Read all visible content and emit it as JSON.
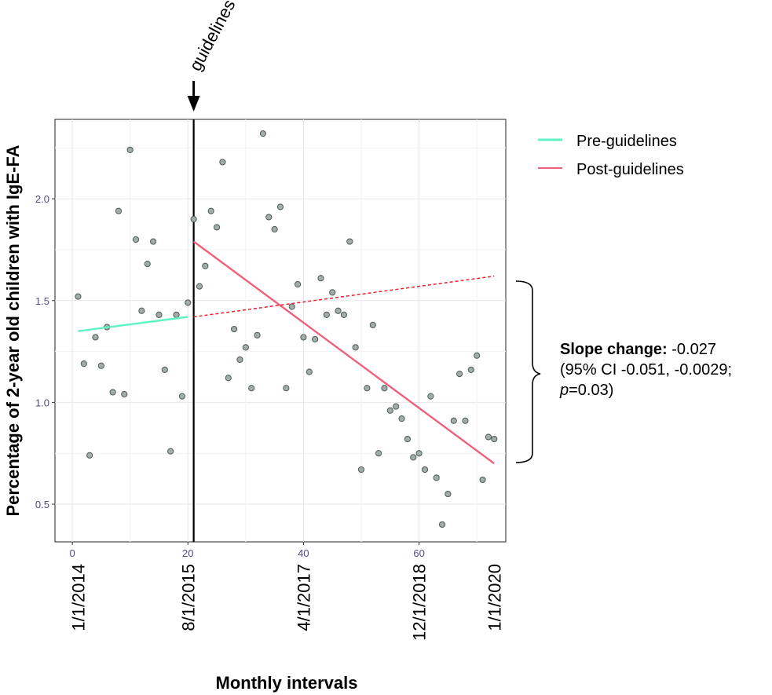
{
  "chart_data": {
    "type": "scatter",
    "title": "",
    "xlabel": "Monthly intervals",
    "ylabel": "Percentage of 2-year old children with IgE-FA",
    "xlim": [
      -3,
      75
    ],
    "ylim": [
      0.315,
      2.39
    ],
    "x_ticks": [
      0,
      20,
      40,
      60
    ],
    "y_ticks": [
      0.5,
      1.0,
      1.5,
      2.0
    ],
    "y_tick_labels": [
      "0.5",
      "1.0",
      "1.5",
      "2.0"
    ],
    "date_labels": [
      {
        "x": 1,
        "label": "1/1/2014"
      },
      {
        "x": 20,
        "label": "8/1/2015"
      },
      {
        "x": 40,
        "label": "4/1/2017"
      },
      {
        "x": 60,
        "label": "12/1/2018"
      },
      {
        "x": 73,
        "label": "1/1/2020"
      }
    ],
    "intervention": {
      "x": 21,
      "label": "guidelines"
    },
    "points": [
      [
        1,
        1.52
      ],
      [
        2,
        1.19
      ],
      [
        3,
        0.74
      ],
      [
        4,
        1.32
      ],
      [
        5,
        1.18
      ],
      [
        6,
        1.37
      ],
      [
        7,
        1.05
      ],
      [
        8,
        1.94
      ],
      [
        9,
        1.04
      ],
      [
        10,
        2.24
      ],
      [
        11,
        1.8
      ],
      [
        12,
        1.45
      ],
      [
        13,
        1.68
      ],
      [
        14,
        1.79
      ],
      [
        15,
        1.43
      ],
      [
        16,
        1.16
      ],
      [
        17,
        0.76
      ],
      [
        18,
        1.43
      ],
      [
        19,
        1.03
      ],
      [
        20,
        1.49
      ],
      [
        21,
        1.9
      ],
      [
        22,
        1.57
      ],
      [
        23,
        1.67
      ],
      [
        24,
        1.94
      ],
      [
        25,
        1.86
      ],
      [
        26,
        2.18
      ],
      [
        27,
        1.12
      ],
      [
        28,
        1.36
      ],
      [
        29,
        1.21
      ],
      [
        30,
        1.27
      ],
      [
        31,
        1.07
      ],
      [
        32,
        1.33
      ],
      [
        33,
        2.32
      ],
      [
        34,
        1.91
      ],
      [
        35,
        1.85
      ],
      [
        36,
        1.96
      ],
      [
        37,
        1.07
      ],
      [
        38,
        1.47
      ],
      [
        39,
        1.58
      ],
      [
        40,
        1.32
      ],
      [
        41,
        1.15
      ],
      [
        42,
        1.31
      ],
      [
        43,
        1.61
      ],
      [
        44,
        1.43
      ],
      [
        45,
        1.54
      ],
      [
        46,
        1.45
      ],
      [
        47,
        1.43
      ],
      [
        48,
        1.79
      ],
      [
        49,
        1.27
      ],
      [
        50,
        0.67
      ],
      [
        51,
        1.07
      ],
      [
        52,
        1.38
      ],
      [
        53,
        0.75
      ],
      [
        54,
        1.07
      ],
      [
        55,
        0.96
      ],
      [
        56,
        0.98
      ],
      [
        57,
        0.92
      ],
      [
        58,
        0.82
      ],
      [
        59,
        0.73
      ],
      [
        60,
        0.75
      ],
      [
        61,
        0.67
      ],
      [
        62,
        1.03
      ],
      [
        63,
        0.63
      ],
      [
        64,
        0.4
      ],
      [
        65,
        0.55
      ],
      [
        66,
        0.91
      ],
      [
        67,
        1.14
      ],
      [
        68,
        0.91
      ],
      [
        69,
        1.16
      ],
      [
        70,
        1.23
      ],
      [
        71,
        0.62
      ],
      [
        72,
        0.83
      ],
      [
        73,
        0.82
      ]
    ],
    "series": [
      {
        "name": "Pre-guidelines",
        "color": "#5ef2c4",
        "style": "solid",
        "x": [
          1,
          20
        ],
        "values": [
          1.35,
          1.42
        ]
      },
      {
        "name": "Post-guidelines",
        "color": "#f0607a",
        "style": "solid",
        "x": [
          21,
          73
        ],
        "values": [
          1.79,
          0.7
        ]
      },
      {
        "name": "Post-guidelines (counterfactual)",
        "color": "#e8202e",
        "style": "dashed",
        "x": [
          21,
          73
        ],
        "values": [
          1.42,
          1.62
        ]
      }
    ],
    "legend": [
      "Pre-guidelines",
      "Post-guidelines"
    ],
    "annotation": {
      "label_bold": "Slope change:",
      "value": " -0.027",
      "line2": "(95% CI -0.051, -0.0029;",
      "p_label": "p",
      "p_value": "=0.03)"
    }
  }
}
